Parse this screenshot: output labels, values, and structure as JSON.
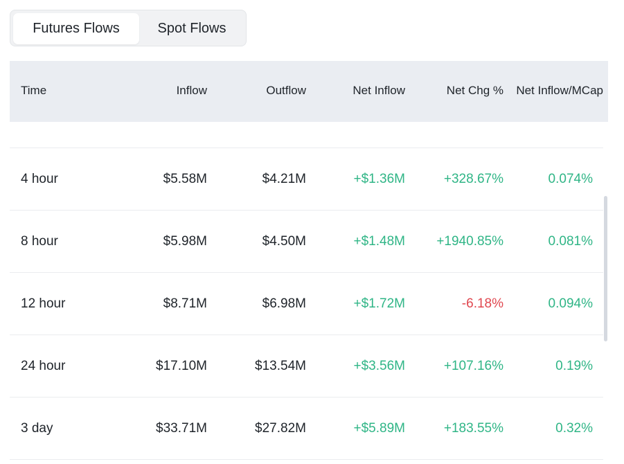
{
  "tabs": [
    "Futures Flows",
    "Spot Flows"
  ],
  "table": {
    "columns": [
      "Time",
      "Inflow",
      "Outflow",
      "Net Inflow",
      "Net Chg %",
      "Net Inflow/MCap"
    ],
    "rows": [
      [
        "4 hour",
        "$5.58M",
        "$4.21M",
        "+$1.36M",
        "+328.67%",
        "0.074%"
      ],
      [
        "8 hour",
        "$5.98M",
        "$4.50M",
        "+$1.48M",
        "+1940.85%",
        "0.081%"
      ],
      [
        "12 hour",
        "$8.71M",
        "$6.98M",
        "+$1.72M",
        "-6.18%",
        "0.094%"
      ],
      [
        "24 hour",
        "$17.10M",
        "$13.54M",
        "+$3.56M",
        "+107.16%",
        "0.19%"
      ],
      [
        "3 day",
        "$33.71M",
        "$27.82M",
        "+$5.89M",
        "+183.55%",
        "0.32%"
      ]
    ]
  }
}
